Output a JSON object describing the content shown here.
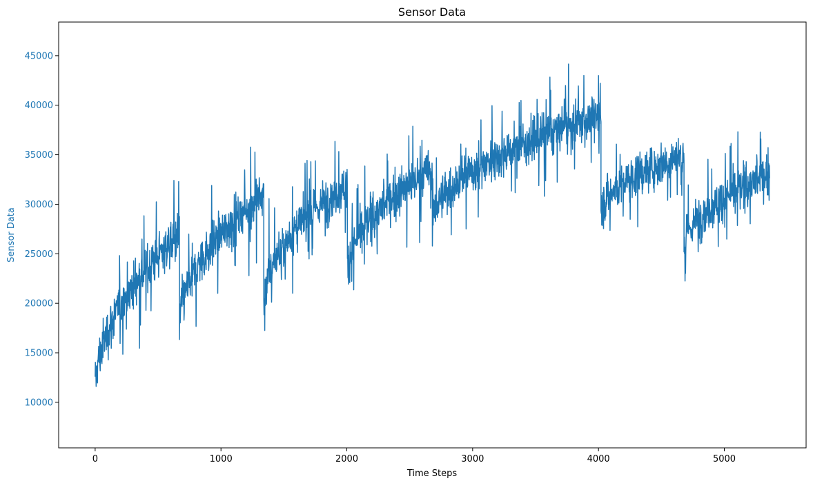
{
  "colors": {
    "series": "#1f77b4",
    "ytick": "#1f77b4",
    "ylabel": "#1f77b4",
    "axis": "#000000"
  },
  "chart_data": {
    "type": "line",
    "title": "Sensor Data",
    "xlabel": "Time Steps",
    "ylabel": "Sensor Data",
    "xlim": [
      -290,
      5650
    ],
    "ylim": [
      5400,
      48400
    ],
    "xticks": [
      0,
      1000,
      2000,
      3000,
      4000,
      5000
    ],
    "yticks": [
      10000,
      15000,
      20000,
      25000,
      30000,
      35000,
      40000,
      45000
    ],
    "grid": false,
    "legend": "none",
    "series": [
      {
        "segments": [
          {
            "x_start": 0,
            "x_end": 670,
            "y_start": 11000,
            "y_end": 27000,
            "spread": 2800
          },
          {
            "x_start": 670,
            "x_end": 1340,
            "y_start": 17500,
            "y_end": 31000,
            "spread": 2700
          },
          {
            "x_start": 1340,
            "x_end": 2005,
            "y_start": 20000,
            "y_end": 32000,
            "spread": 2600
          },
          {
            "x_start": 2005,
            "x_end": 2680,
            "y_start": 23000,
            "y_end": 33500,
            "spread": 2600
          },
          {
            "x_start": 2680,
            "x_end": 4020,
            "y_start": 28000,
            "y_end": 39000,
            "spread": 2500
          },
          {
            "x_start": 4020,
            "x_end": 4680,
            "y_start": 29000,
            "y_end": 35000,
            "spread": 2500
          },
          {
            "x_start": 4680,
            "x_end": 5360,
            "y_start": 25500,
            "y_end": 33000,
            "spread": 2500
          }
        ]
      }
    ]
  }
}
